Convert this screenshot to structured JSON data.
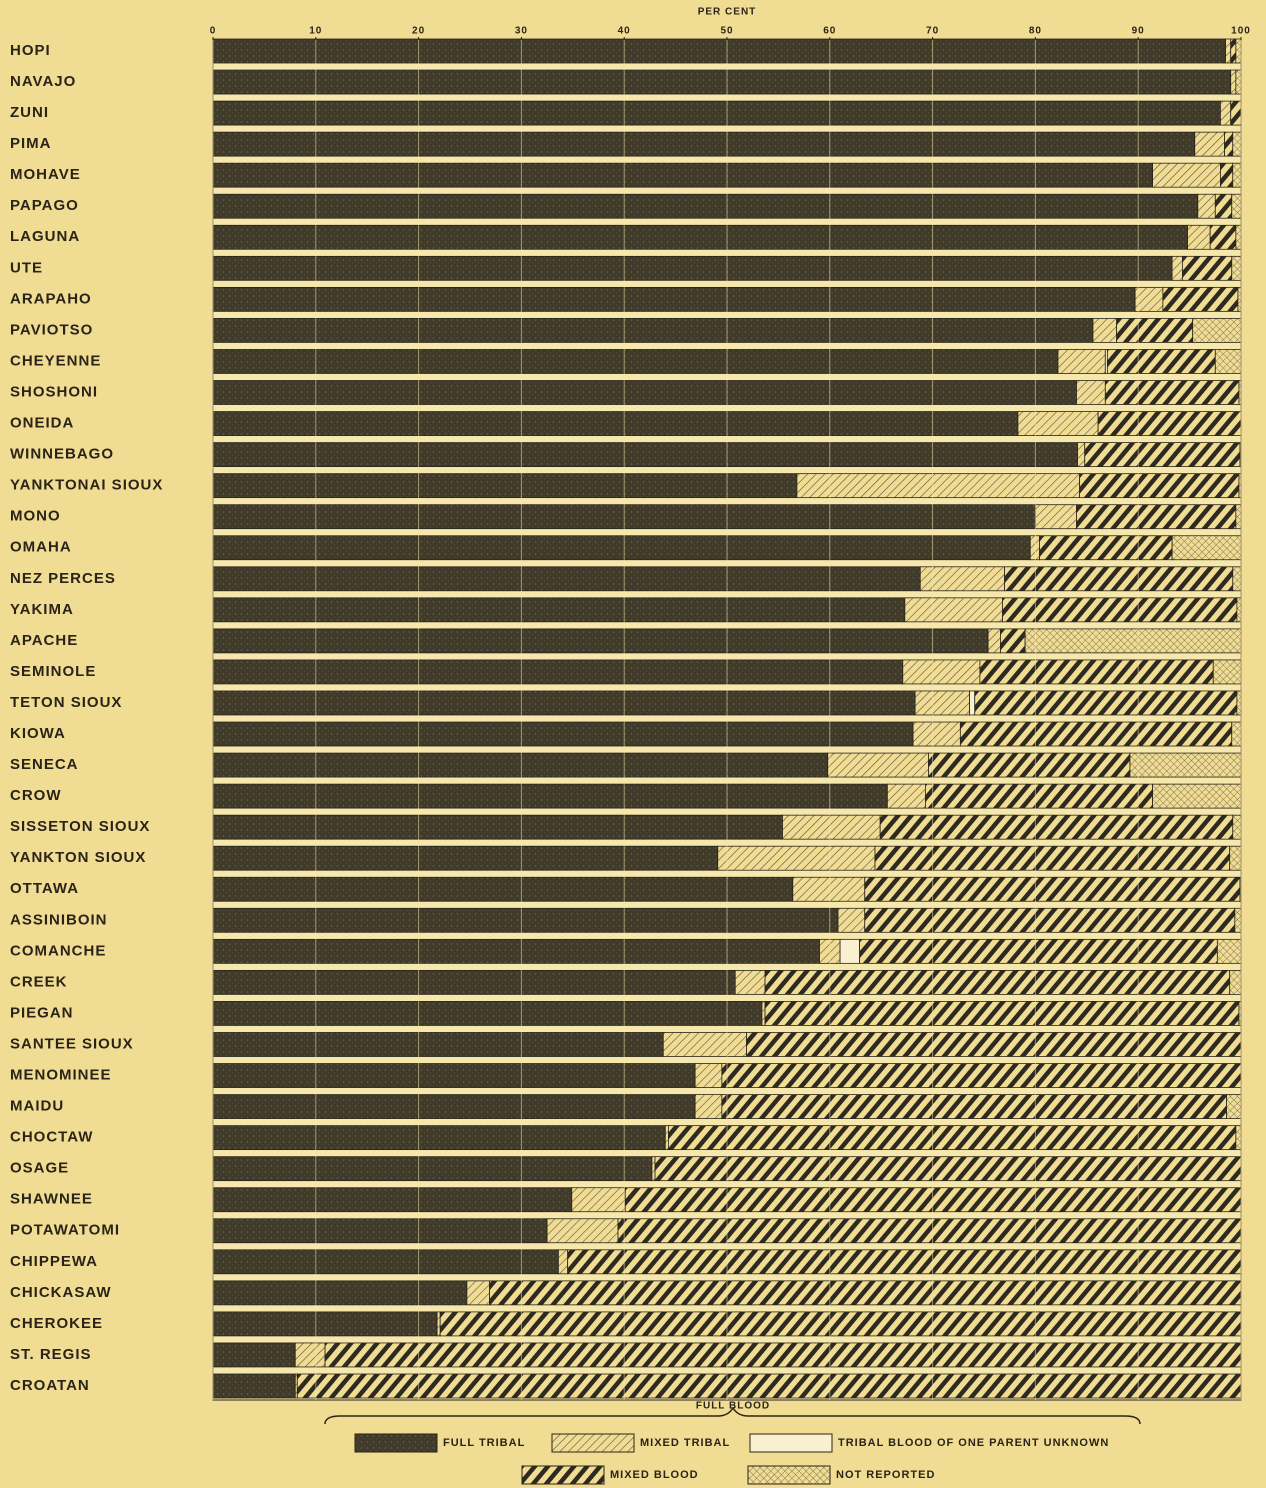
{
  "chart_data": {
    "type": "stacked-bar",
    "orientation": "horizontal",
    "x_label": "PER CENT",
    "annotation": "FULL BLOOD",
    "xlim": [
      0,
      100
    ],
    "xticks": [
      0,
      10,
      20,
      30,
      40,
      50,
      60,
      70,
      80,
      90,
      100
    ],
    "grid": true,
    "categories": [
      "HOPI",
      "NAVAJO",
      "ZUNI",
      "PIMA",
      "MOHAVE",
      "PAPAGO",
      "LAGUNA",
      "UTE",
      "ARAPAHO",
      "PAVIOTSO",
      "CHEYENNE",
      "SHOSHONI",
      "ONEIDA",
      "WINNEBAGO",
      "YANKTONAI SIOUX",
      "MONO",
      "OMAHA",
      "NEZ PERCES",
      "YAKIMA",
      "APACHE",
      "SEMINOLE",
      "TETON SIOUX",
      "KIOWA",
      "SENECA",
      "CROW",
      "SISSETON SIOUX",
      "YANKTON SIOUX",
      "OTTAWA",
      "ASSINIBOIN",
      "COMANCHE",
      "CREEK",
      "PIEGAN",
      "SANTEE SIOUX",
      "MENOMINEE",
      "MAIDU",
      "CHOCTAW",
      "OSAGE",
      "SHAWNEE",
      "POTAWATOMI",
      "CHIPPEWA",
      "CHICKASAW",
      "CHEROKEE",
      "ST. REGIS",
      "CROATAN"
    ],
    "series": [
      {
        "name": "FULL TRIBAL",
        "color": "#3f3a2a",
        "pattern": "solid",
        "values": [
          98.5,
          99,
          98,
          95.5,
          91.4,
          95.8,
          94.8,
          93.3,
          89.7,
          85.6,
          82.2,
          84,
          78.3,
          84.1,
          56.8,
          80,
          79.5,
          68.8,
          67.3,
          75.4,
          67.1,
          68.3,
          68.1,
          59.8,
          65.6,
          55.4,
          49.1,
          56.4,
          60.8,
          59,
          50.8,
          53.4,
          43.8,
          46.9,
          46.9,
          44,
          42.7,
          34.9,
          32.5,
          33.6,
          24.7,
          21.8,
          8,
          8
        ]
      },
      {
        "name": "MIXED TRIBAL",
        "color": "#5a5240",
        "pattern": "thin-hatch",
        "values": [
          0.5,
          0.5,
          1,
          2.9,
          6.6,
          1.7,
          2.2,
          1,
          2.7,
          2.3,
          4.6,
          2.8,
          7.8,
          0.7,
          27.5,
          4,
          0.9,
          8.2,
          9.5,
          1.2,
          7.5,
          5.3,
          4.6,
          9.8,
          3.7,
          9.5,
          15.3,
          7,
          2.6,
          2,
          2.9,
          0.3,
          8.1,
          2.6,
          2.6,
          0.3,
          0.3,
          5.2,
          6.9,
          0.9,
          2.2,
          0.3,
          2.9,
          0.2
        ]
      },
      {
        "name": "TRIBAL BLOOD OF ONE PARENT UNKNOWN",
        "color": "#f8f0d0",
        "pattern": "plain",
        "values": [
          0,
          0,
          0,
          0,
          0,
          0,
          0,
          0,
          0,
          0,
          0.2,
          0,
          0,
          0,
          0,
          0,
          0,
          0,
          0,
          0,
          0,
          0.5,
          0,
          0,
          0,
          0,
          0,
          0,
          0,
          1.9,
          0,
          0,
          0,
          0,
          0,
          0,
          0,
          0,
          0,
          0,
          0,
          0,
          0,
          0
        ]
      },
      {
        "name": "MIXED BLOOD",
        "color": "#2e2a20",
        "pattern": "thick-hatch",
        "values": [
          0.5,
          0,
          1,
          0.8,
          1.2,
          1.6,
          2.5,
          4.8,
          7.3,
          7.4,
          10.5,
          13,
          13.9,
          15.1,
          15.5,
          15.5,
          12.9,
          22.2,
          22.8,
          2.4,
          22.7,
          25.5,
          26.4,
          19.6,
          22.1,
          34.3,
          34.5,
          36.5,
          36,
          34.8,
          45.2,
          46.1,
          48.1,
          50.5,
          49.1,
          55.2,
          57,
          59.9,
          60.6,
          65.5,
          73.1,
          77.9,
          89.1,
          91.8
        ]
      },
      {
        "name": "NOT REPORTED",
        "color": "#6a6048",
        "pattern": "cross",
        "values": [
          0.5,
          0.5,
          0,
          0.8,
          0.8,
          0.9,
          0.5,
          0.9,
          0.3,
          4.7,
          2.5,
          0.2,
          0,
          0.1,
          0.2,
          0.5,
          6.7,
          0.8,
          0.4,
          21,
          2.7,
          0.4,
          0.9,
          10.8,
          8.6,
          0.8,
          1.1,
          0.1,
          0.6,
          2.3,
          1.1,
          0.2,
          0,
          0,
          1.4,
          0.5,
          0,
          0,
          0,
          0,
          0,
          0,
          0,
          0
        ]
      }
    ]
  }
}
